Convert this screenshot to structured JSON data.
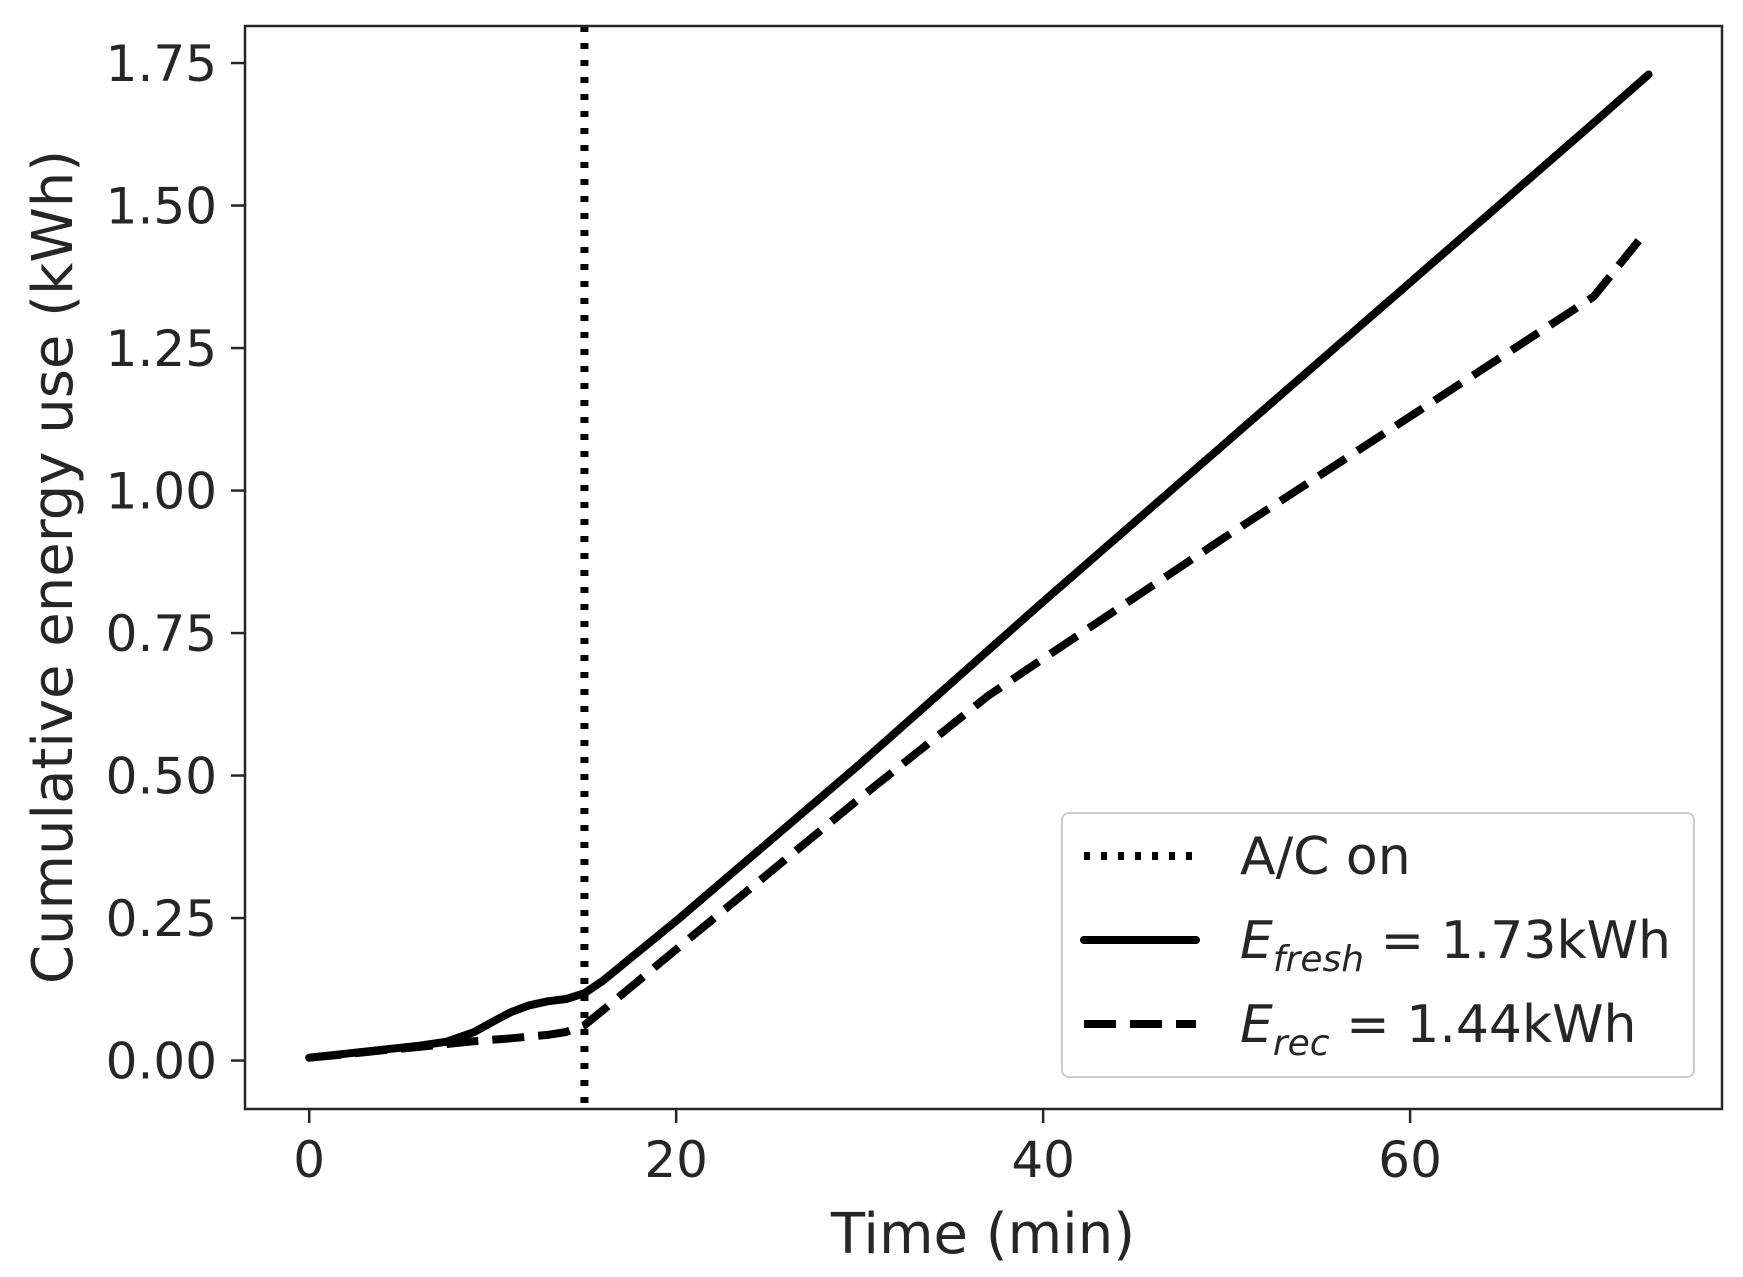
{
  "chart_data": {
    "type": "line",
    "title": "",
    "xlabel": "Time (min)",
    "ylabel": "Cumulative energy use (kWh)",
    "xlim": [
      -3.5,
      77
    ],
    "ylim": [
      -0.085,
      1.815
    ],
    "xticks": [
      0,
      20,
      40,
      60
    ],
    "yticks": [
      0.0,
      0.25,
      0.5,
      0.75,
      1.0,
      1.25,
      1.5,
      1.75
    ],
    "xtick_labels": [
      "0",
      "20",
      "40",
      "60"
    ],
    "ytick_labels": [
      "0.00",
      "0.25",
      "0.50",
      "0.75",
      "1.00",
      "1.25",
      "1.50",
      "1.75"
    ],
    "grid": false,
    "legend_position": "bottom-right",
    "vlines": [
      {
        "name": "A/C on",
        "x": 15,
        "style": "dotted",
        "color": "#000000"
      }
    ],
    "series": [
      {
        "name": "E_fresh = 1.73kWh",
        "legend_main": "E",
        "legend_sub": "fresh",
        "legend_rest": " = 1.73kWh",
        "style": "solid",
        "color": "#000000",
        "x": [
          0,
          2,
          4,
          6,
          7.5,
          9,
          10,
          11,
          12,
          13,
          14,
          15,
          16,
          20,
          30,
          40,
          50,
          60,
          70,
          73
        ],
        "y": [
          0.005,
          0.012,
          0.019,
          0.026,
          0.033,
          0.05,
          0.068,
          0.085,
          0.097,
          0.104,
          0.108,
          0.118,
          0.14,
          0.245,
          0.52,
          0.805,
          1.085,
          1.365,
          1.645,
          1.73
        ]
      },
      {
        "name": "E_rec = 1.44kWh",
        "legend_main": "E",
        "legend_sub": "rec",
        "legend_rest": " = 1.44kWh",
        "style": "dashed",
        "color": "#000000",
        "x": [
          0,
          2,
          4,
          6,
          7.5,
          9,
          11,
          13,
          14,
          15,
          16,
          20,
          30,
          37,
          40,
          50,
          60,
          70,
          72.5
        ],
        "y": [
          0.005,
          0.011,
          0.018,
          0.024,
          0.029,
          0.034,
          0.039,
          0.045,
          0.05,
          0.062,
          0.088,
          0.195,
          0.46,
          0.64,
          0.705,
          0.92,
          1.13,
          1.34,
          1.44
        ]
      }
    ]
  }
}
